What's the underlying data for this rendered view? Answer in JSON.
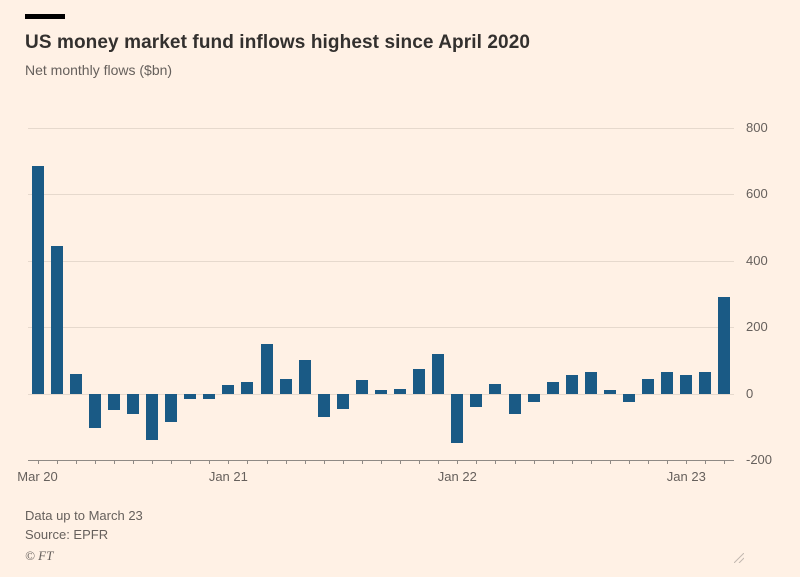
{
  "header": {
    "title": "US money market fund inflows highest since April 2020",
    "subtitle": "Net monthly flows ($bn)"
  },
  "footer": {
    "note": "Data up to March 23",
    "source": "Source: EPFR",
    "credit": "© FT"
  },
  "colors": {
    "background": "#FFF1E5",
    "bar": "#1A5A85",
    "grid": "#E6D9CD",
    "axis": "#8F8A85",
    "title_text": "#33302E",
    "muted_text": "#66605C"
  },
  "chart_data": {
    "type": "bar",
    "title": "US money market fund inflows highest since April 2020",
    "subtitle": "Net monthly flows ($bn)",
    "xlabel": "",
    "ylabel": "Net monthly flows ($bn)",
    "ylim": [
      -200,
      800
    ],
    "y_ticks": [
      800,
      600,
      400,
      200,
      0,
      -200
    ],
    "grid": "horizontal",
    "legend": "none",
    "categories": [
      "Mar 20",
      "Apr 20",
      "May 20",
      "Jun 20",
      "Jul 20",
      "Aug 20",
      "Sep 20",
      "Oct 20",
      "Nov 20",
      "Dec 20",
      "Jan 21",
      "Feb 21",
      "Mar 21",
      "Apr 21",
      "May 21",
      "Jun 21",
      "Jul 21",
      "Aug 21",
      "Sep 21",
      "Oct 21",
      "Nov 21",
      "Dec 21",
      "Jan 22",
      "Feb 22",
      "Mar 22",
      "Apr 22",
      "May 22",
      "Jun 22",
      "Jul 22",
      "Aug 22",
      "Sep 22",
      "Oct 22",
      "Nov 22",
      "Dec 22",
      "Jan 23",
      "Feb 23",
      "Mar 23"
    ],
    "values": [
      685,
      445,
      60,
      -105,
      -50,
      -60,
      -140,
      -85,
      -15,
      -15,
      25,
      35,
      150,
      45,
      100,
      -70,
      -45,
      40,
      10,
      15,
      75,
      120,
      -150,
      -40,
      30,
      -60,
      -25,
      35,
      55,
      65,
      10,
      -25,
      45,
      65,
      55,
      65,
      290
    ],
    "x_tick_labels": [
      {
        "index": 0,
        "label": "Mar 20"
      },
      {
        "index": 10,
        "label": "Jan 21"
      },
      {
        "index": 22,
        "label": "Jan 22"
      },
      {
        "index": 34,
        "label": "Jan 23"
      }
    ]
  }
}
